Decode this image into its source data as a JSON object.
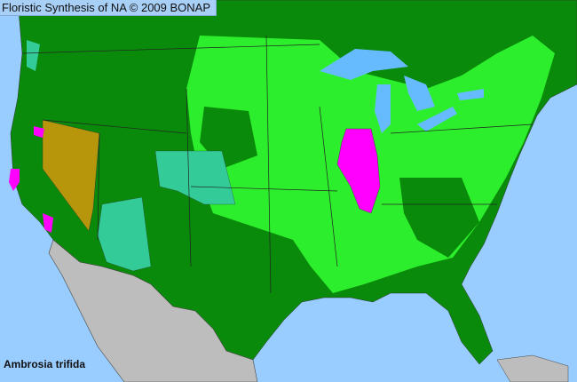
{
  "title": "Floristic Synthesis of NA © 2009 BONAP",
  "species": "Ambrosia trifida",
  "colors": {
    "ocean": "#99ccff",
    "native_present": "#008a00",
    "native_common": "#33ff33",
    "noxious": "#ff00ff",
    "not_present_state": "#b8960c",
    "rare": "#33cc99",
    "mexico": "#bdbdbd",
    "lakes": "#66bbff"
  }
}
